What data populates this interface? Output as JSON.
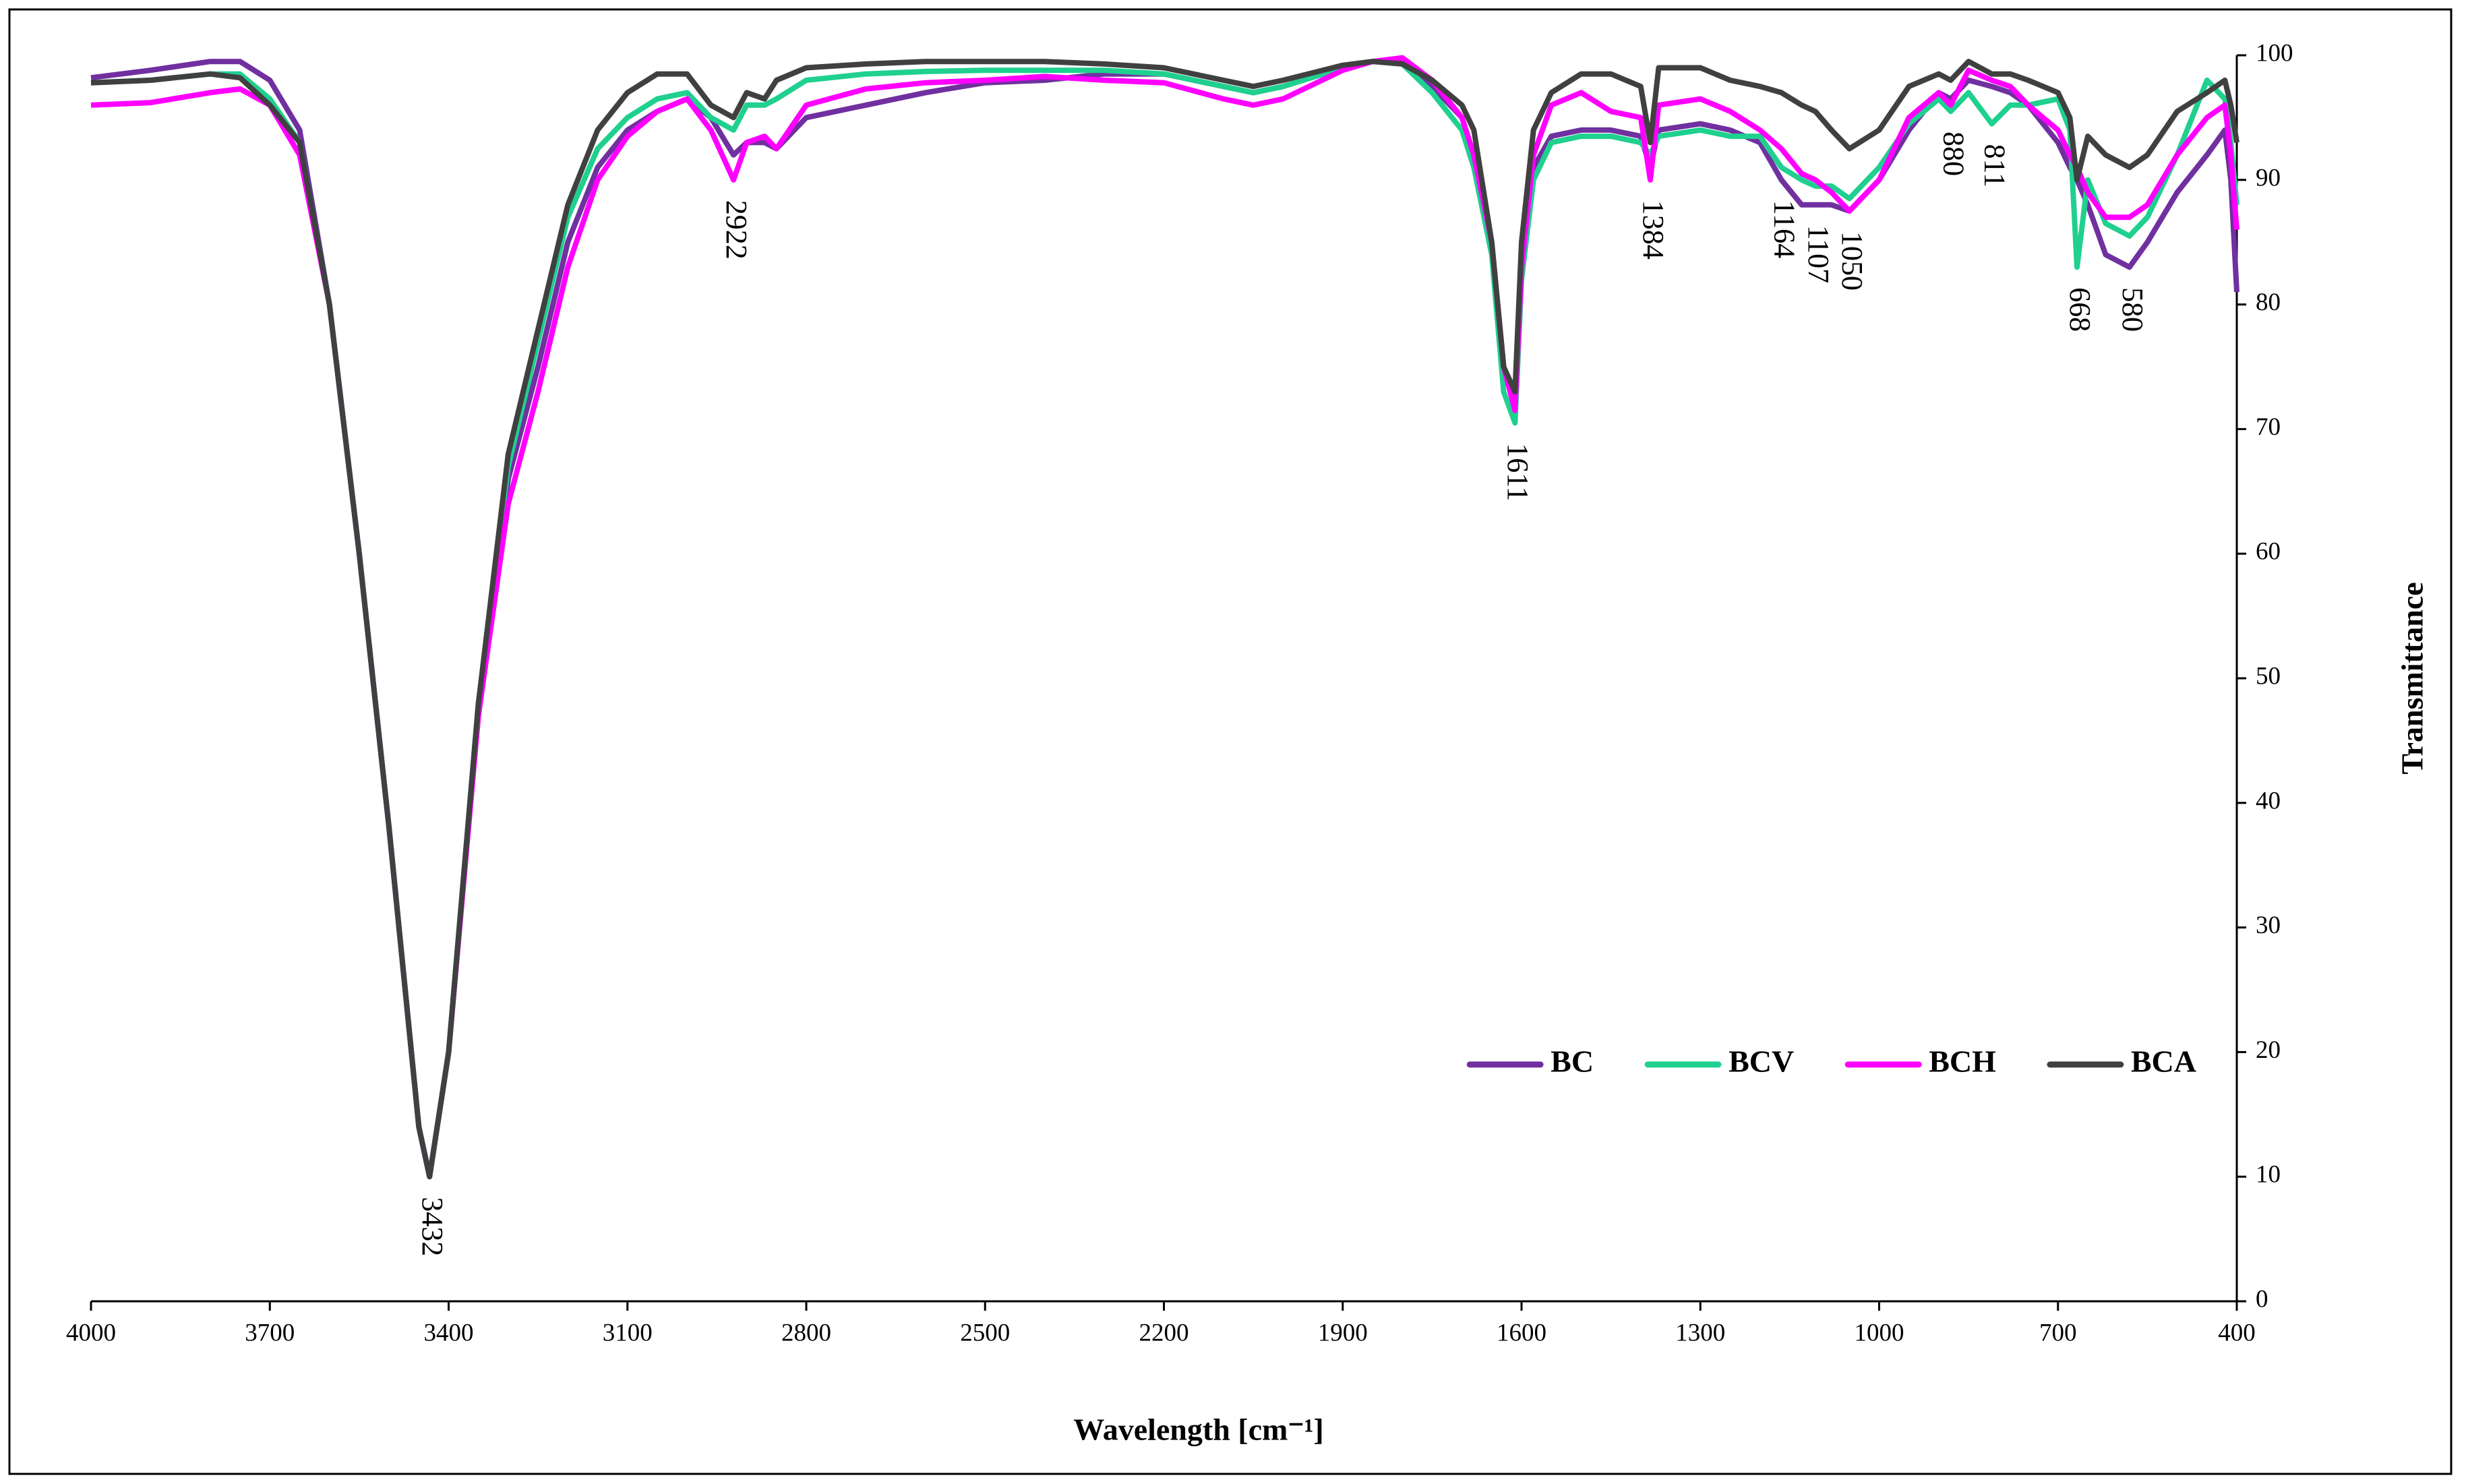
{
  "chart_data": {
    "type": "line",
    "x_label": "Wavelength [cm⁻¹]",
    "y_label": "Transmittance",
    "xlim": [
      4000,
      400
    ],
    "xticks": [
      4000,
      3700,
      3400,
      3100,
      2800,
      2500,
      2200,
      1900,
      1600,
      1300,
      1000,
      700,
      400
    ],
    "ylim": [
      0,
      100
    ],
    "yticks": [
      0,
      10,
      20,
      30,
      40,
      50,
      60,
      70,
      80,
      90,
      100
    ],
    "y_axis_side": "right",
    "grid": false,
    "legend": "lower right",
    "x": [
      4000,
      3900,
      3800,
      3750,
      3700,
      3650,
      3600,
      3550,
      3500,
      3450,
      3432,
      3400,
      3350,
      3300,
      3250,
      3200,
      3150,
      3100,
      3050,
      3000,
      2960,
      2922,
      2900,
      2870,
      2850,
      2800,
      2700,
      2600,
      2500,
      2400,
      2300,
      2200,
      2100,
      2050,
      2000,
      1900,
      1850,
      1800,
      1750,
      1700,
      1680,
      1650,
      1630,
      1611,
      1600,
      1580,
      1550,
      1500,
      1450,
      1400,
      1384,
      1370,
      1300,
      1250,
      1200,
      1164,
      1130,
      1107,
      1080,
      1050,
      1000,
      950,
      900,
      880,
      850,
      811,
      780,
      750,
      700,
      680,
      668,
      650,
      620,
      580,
      550,
      500,
      450,
      420,
      410,
      400
    ],
    "series": [
      {
        "name": "BC",
        "color": "#7030a0",
        "values": [
          98.2,
          98.8,
          99.5,
          99.5,
          98,
          94,
          80,
          60,
          38,
          14,
          10,
          20,
          48,
          66,
          75,
          85,
          91,
          94,
          95.5,
          96.5,
          95,
          92,
          93,
          93,
          92.5,
          95,
          96,
          97,
          97.8,
          98,
          98.5,
          98.5,
          97.5,
          97,
          97.5,
          99,
          99.5,
          99.5,
          97.5,
          95,
          92,
          85,
          75,
          72,
          83,
          91,
          93.5,
          94,
          94,
          93.5,
          91,
          94,
          94.5,
          94,
          93,
          90,
          88,
          88,
          88,
          87.5,
          90,
          94,
          97,
          96.5,
          98,
          97.5,
          97,
          96,
          93,
          91,
          90,
          88,
          84,
          83,
          85,
          89,
          92,
          94,
          90,
          81
        ]
      },
      {
        "name": "BCV",
        "color": "#1fd08f",
        "values": [
          97.8,
          98,
          98.5,
          98.5,
          96.5,
          93,
          80,
          60,
          38,
          14,
          10,
          20,
          48,
          67,
          77,
          87,
          92.5,
          95,
          96.5,
          97,
          95,
          94,
          96,
          96,
          96.5,
          98,
          98.5,
          98.7,
          98.8,
          98.8,
          98.8,
          98.5,
          97.5,
          97,
          97.5,
          99,
          99.5,
          99.3,
          97,
          94,
          91,
          84,
          73,
          70.5,
          82,
          90,
          93,
          93.5,
          93.5,
          93,
          92,
          93.5,
          94,
          93.5,
          93.5,
          91,
          90,
          89.5,
          89.5,
          88.5,
          91,
          94.5,
          96.5,
          95.5,
          97,
          94.5,
          96,
          96,
          96.5,
          94,
          83,
          90,
          86.5,
          85.5,
          87,
          92,
          98,
          96.5,
          93,
          88
        ]
      },
      {
        "name": "BCH",
        "color": "#ff00ff",
        "values": [
          96,
          96.2,
          97,
          97.3,
          96,
          92,
          80,
          60,
          38,
          14,
          10,
          20,
          47,
          64,
          73,
          83,
          90,
          93.5,
          95.5,
          96.5,
          94,
          90,
          93,
          93.5,
          92.5,
          96,
          97.3,
          97.8,
          98,
          98.3,
          98,
          97.8,
          96.5,
          96,
          96.5,
          98.8,
          99.5,
          99.8,
          98,
          95,
          92,
          85,
          75,
          71.5,
          83,
          92,
          96,
          97,
          95.5,
          95,
          90,
          96,
          96.5,
          95.5,
          94,
          92.5,
          90.5,
          90,
          89,
          87.5,
          90,
          95,
          97,
          96,
          98.8,
          98,
          97.5,
          96,
          94,
          92,
          91,
          89,
          87,
          87,
          88,
          92,
          95,
          96,
          92,
          86
        ]
      },
      {
        "name": "BCA",
        "color": "#404040",
        "values": [
          97.8,
          98,
          98.5,
          98.2,
          96,
          93,
          80,
          60,
          38,
          14,
          10,
          20,
          48,
          68,
          78,
          88,
          94,
          97,
          98.5,
          98.5,
          96,
          95,
          97,
          96.5,
          98,
          99,
          99.3,
          99.5,
          99.5,
          99.5,
          99.3,
          99,
          98,
          97.5,
          98,
          99.2,
          99.5,
          99.3,
          98,
          96,
          94,
          85,
          75,
          73,
          85,
          94,
          97,
          98.5,
          98.5,
          97.5,
          93,
          99,
          99,
          98,
          97.5,
          97,
          96,
          95.5,
          94,
          92.5,
          94,
          97.5,
          98.5,
          98,
          99.5,
          98.5,
          98.5,
          98,
          97,
          95,
          90,
          93.5,
          92,
          91,
          92,
          95.5,
          97,
          98,
          96,
          93
        ]
      }
    ],
    "peak_labels": [
      "3432",
      "2922",
      "1611",
      "1384",
      "1164",
      "1107",
      "1050",
      "880",
      "811",
      "668",
      "580"
    ]
  }
}
